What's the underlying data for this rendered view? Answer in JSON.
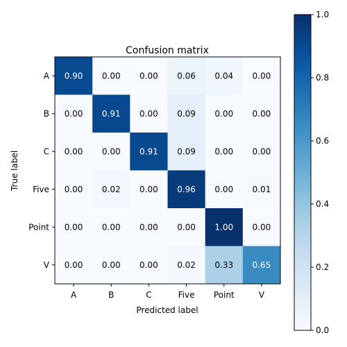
{
  "chart_data": {
    "type": "heatmap",
    "title": "Confusion matrix",
    "xlabel": "Predicted label",
    "ylabel": "True label",
    "categories": [
      "A",
      "B",
      "C",
      "Five",
      "Point",
      "V"
    ],
    "values": [
      [
        0.9,
        0.0,
        0.0,
        0.06,
        0.04,
        0.0
      ],
      [
        0.0,
        0.91,
        0.0,
        0.09,
        0.0,
        0.0
      ],
      [
        0.0,
        0.0,
        0.91,
        0.09,
        0.0,
        0.0
      ],
      [
        0.0,
        0.02,
        0.0,
        0.96,
        0.0,
        0.01
      ],
      [
        0.0,
        0.0,
        0.0,
        0.0,
        1.0,
        0.0
      ],
      [
        0.0,
        0.0,
        0.0,
        0.02,
        0.33,
        0.65
      ]
    ],
    "colorbar": {
      "range": [
        0.0,
        1.0
      ],
      "ticks": [
        "0.0",
        "0.2",
        "0.4",
        "0.6",
        "0.8",
        "1.0"
      ],
      "colormap": "Blues"
    }
  }
}
